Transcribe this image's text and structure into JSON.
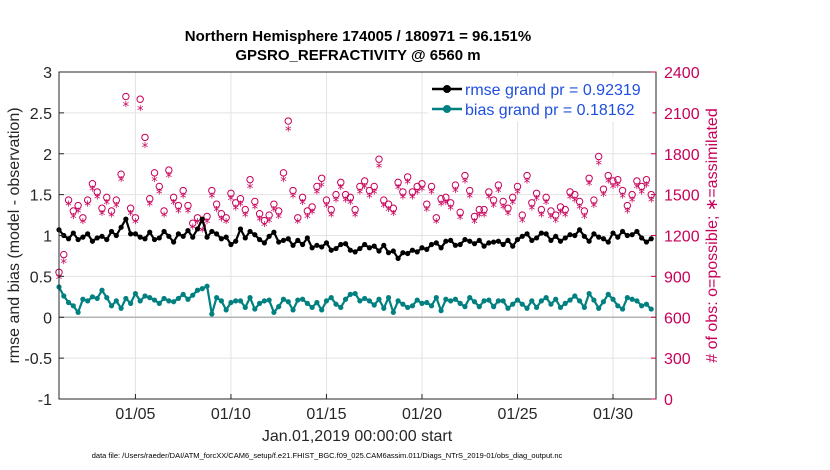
{
  "chart_data": {
    "type": "line",
    "title_line1": "Northern Hemisphere 174005 / 180971 = 96.151%",
    "title_line2": "GPSRO_REFRACTIVITY @ 6560 m",
    "ylabel_left": "rmse and bias (model - observation)",
    "ylabel_right": "# of obs: o=possible; ∗=assimilated",
    "xlabel": "Jan.01,2019 00:00:00 start",
    "footnote": "data file: /Users/raeder/DAI/ATM_forcXX/CAM6_setup/f.e21.FHIST_BGC.f09_025.CAM6assim.011/Diags_NTrS_2019-01/obs_diag_output.nc",
    "xlim": [
      1,
      32.25
    ],
    "ylim_left": [
      -1,
      3
    ],
    "ylim_right": [
      0,
      2400
    ],
    "yticks_left": [
      "-1",
      "-0.5",
      "0",
      "0.5",
      "1",
      "1.5",
      "2",
      "2.5",
      "3"
    ],
    "yticks_left_values": [
      -1,
      -0.5,
      0,
      0.5,
      1,
      1.5,
      2,
      2.5,
      3
    ],
    "yticks_right": [
      "0",
      "300",
      "600",
      "900",
      "1200",
      "1500",
      "1800",
      "2100",
      "2400"
    ],
    "yticks_right_values": [
      0,
      300,
      600,
      900,
      1200,
      1500,
      1800,
      2100,
      2400
    ],
    "xticks": [
      "01/05",
      "01/10",
      "01/15",
      "01/20",
      "01/25",
      "01/30"
    ],
    "xticks_values": [
      5,
      10,
      15,
      20,
      25,
      30
    ],
    "grid": true,
    "legend_position": "top-right",
    "colors": {
      "rmse": "#000000",
      "bias": "#008080",
      "counts": "#c8005a",
      "zero_line": "#b4b4b4",
      "legend_text": "#1f4fe0"
    },
    "series": [
      {
        "name": "rmse",
        "legend": "rmse grand pr = 0.92319",
        "color": "#000000",
        "marker": "dot",
        "x": [
          1.0,
          1.25,
          1.5,
          1.75,
          2.0,
          2.25,
          2.5,
          2.75,
          3.0,
          3.25,
          3.5,
          3.75,
          4.0,
          4.25,
          4.5,
          4.75,
          5.0,
          5.25,
          5.5,
          5.75,
          6.0,
          6.25,
          6.5,
          6.75,
          7.0,
          7.25,
          7.5,
          7.75,
          8.0,
          8.25,
          8.5,
          8.75,
          9.0,
          9.25,
          9.5,
          9.75,
          10.0,
          10.25,
          10.5,
          10.75,
          11.0,
          11.25,
          11.5,
          11.75,
          12.0,
          12.25,
          12.5,
          12.75,
          13.0,
          13.25,
          13.5,
          13.75,
          14.0,
          14.25,
          14.5,
          14.75,
          15.0,
          15.25,
          15.5,
          15.75,
          16.0,
          16.25,
          16.5,
          16.75,
          17.0,
          17.25,
          17.5,
          17.75,
          18.0,
          18.25,
          18.5,
          18.75,
          19.0,
          19.25,
          19.5,
          19.75,
          20.0,
          20.25,
          20.5,
          20.75,
          21.0,
          21.25,
          21.5,
          21.75,
          22.0,
          22.25,
          22.5,
          22.75,
          23.0,
          23.25,
          23.5,
          23.75,
          24.0,
          24.25,
          24.5,
          24.75,
          25.0,
          25.25,
          25.5,
          25.75,
          26.0,
          26.25,
          26.5,
          26.75,
          27.0,
          27.25,
          27.5,
          27.75,
          28.0,
          28.25,
          28.5,
          28.75,
          29.0,
          29.25,
          29.5,
          29.75,
          30.0,
          30.25,
          30.5,
          30.75,
          31.0,
          31.25,
          31.5,
          31.75,
          32.0
        ],
        "values": [
          1.07,
          1.0,
          0.96,
          1.03,
          0.95,
          0.98,
          1.02,
          0.93,
          0.97,
          0.99,
          0.95,
          1.05,
          1.0,
          1.1,
          1.2,
          1.02,
          1.02,
          0.98,
          0.96,
          1.04,
          0.95,
          0.97,
          1.05,
          0.99,
          0.92,
          1.02,
          0.99,
          1.06,
          0.98,
          1.08,
          1.2,
          0.98,
          1.05,
          1.02,
          0.96,
          0.98,
          0.89,
          0.93,
          1.08,
          0.97,
          1.05,
          1.01,
          0.95,
          0.91,
          0.99,
          1.04,
          0.92,
          0.94,
          0.96,
          0.88,
          0.94,
          0.89,
          0.97,
          0.85,
          0.88,
          0.86,
          0.91,
          0.82,
          0.84,
          0.89,
          0.9,
          0.82,
          0.8,
          0.84,
          0.89,
          0.85,
          0.87,
          0.81,
          0.88,
          0.79,
          0.81,
          0.72,
          0.79,
          0.78,
          0.82,
          0.8,
          0.85,
          0.83,
          0.89,
          0.91,
          0.85,
          0.93,
          0.94,
          0.88,
          0.89,
          0.95,
          0.93,
          0.9,
          0.94,
          0.87,
          0.91,
          0.92,
          0.93,
          0.89,
          0.94,
          0.87,
          0.95,
          0.99,
          1.02,
          0.94,
          0.97,
          1.03,
          1.02,
          0.94,
          0.99,
          0.93,
          0.97,
          1.01,
          1.0,
          1.07,
          0.99,
          0.93,
          1.02,
          0.98,
          0.96,
          0.92,
          1.03,
          0.98,
          1.05,
          1.0,
          1.01,
          1.05,
          0.97,
          0.92,
          0.96
        ]
      },
      {
        "name": "bias",
        "legend": "bias grand pr = 0.18162",
        "color": "#008080",
        "marker": "dot",
        "x": [
          1.0,
          1.25,
          1.5,
          1.75,
          2.0,
          2.25,
          2.5,
          2.75,
          3.0,
          3.25,
          3.5,
          3.75,
          4.0,
          4.25,
          4.5,
          4.75,
          5.0,
          5.25,
          5.5,
          5.75,
          6.0,
          6.25,
          6.5,
          6.75,
          7.0,
          7.25,
          7.5,
          7.75,
          8.0,
          8.25,
          8.5,
          8.75,
          9.0,
          9.25,
          9.5,
          9.75,
          10.0,
          10.25,
          10.5,
          10.75,
          11.0,
          11.25,
          11.5,
          11.75,
          12.0,
          12.25,
          12.5,
          12.75,
          13.0,
          13.25,
          13.5,
          13.75,
          14.0,
          14.25,
          14.5,
          14.75,
          15.0,
          15.25,
          15.5,
          15.75,
          16.0,
          16.25,
          16.5,
          16.75,
          17.0,
          17.25,
          17.5,
          17.75,
          18.0,
          18.25,
          18.5,
          18.75,
          19.0,
          19.25,
          19.5,
          19.75,
          20.0,
          20.25,
          20.5,
          20.75,
          21.0,
          21.25,
          21.5,
          21.75,
          22.0,
          22.25,
          22.5,
          22.75,
          23.0,
          23.25,
          23.5,
          23.75,
          24.0,
          24.25,
          24.5,
          24.75,
          25.0,
          25.25,
          25.5,
          25.75,
          26.0,
          26.25,
          26.5,
          26.75,
          27.0,
          27.25,
          27.5,
          27.75,
          28.0,
          28.25,
          28.5,
          28.75,
          29.0,
          29.25,
          29.5,
          29.75,
          30.0,
          30.25,
          30.5,
          30.75,
          31.0,
          31.25,
          31.5,
          31.75,
          32.0
        ],
        "values": [
          0.37,
          0.26,
          0.18,
          0.14,
          0.06,
          0.22,
          0.2,
          0.25,
          0.23,
          0.33,
          0.24,
          0.14,
          0.2,
          0.11,
          0.23,
          0.17,
          0.29,
          0.2,
          0.26,
          0.24,
          0.21,
          0.17,
          0.23,
          0.2,
          0.19,
          0.23,
          0.28,
          0.22,
          0.27,
          0.33,
          0.35,
          0.38,
          0.04,
          0.24,
          0.2,
          0.09,
          0.18,
          0.2,
          0.2,
          0.12,
          0.24,
          0.1,
          0.17,
          0.2,
          0.21,
          0.06,
          0.13,
          0.22,
          0.19,
          0.09,
          0.21,
          0.22,
          0.17,
          0.12,
          0.18,
          0.09,
          0.2,
          0.24,
          0.16,
          0.12,
          0.22,
          0.28,
          0.29,
          0.2,
          0.23,
          0.2,
          0.15,
          0.22,
          0.11,
          0.24,
          0.06,
          0.2,
          0.16,
          0.12,
          0.14,
          0.21,
          0.17,
          0.18,
          0.14,
          0.24,
          0.08,
          0.22,
          0.2,
          0.22,
          0.17,
          0.13,
          0.24,
          0.19,
          0.13,
          0.2,
          0.21,
          0.13,
          0.2,
          0.2,
          0.11,
          0.16,
          0.21,
          0.16,
          0.11,
          0.2,
          0.12,
          0.2,
          0.24,
          0.16,
          0.22,
          0.12,
          0.17,
          0.21,
          0.26,
          0.2,
          0.12,
          0.29,
          0.21,
          0.11,
          0.19,
          0.28,
          0.22,
          0.14,
          0.1,
          0.24,
          0.22,
          0.2,
          0.14,
          0.16,
          0.1
        ]
      },
      {
        "name": "obs_possible",
        "marker": "circle",
        "axis": "right",
        "color": "#c8005a",
        "x": [
          1.0,
          1.25,
          1.5,
          1.75,
          2.0,
          2.25,
          2.5,
          2.75,
          3.0,
          3.25,
          3.5,
          3.75,
          4.0,
          4.25,
          4.5,
          4.75,
          5.0,
          5.25,
          5.5,
          5.75,
          6.0,
          6.25,
          6.5,
          6.75,
          7.0,
          7.25,
          7.5,
          7.75,
          8.0,
          8.25,
          8.5,
          8.75,
          9.0,
          9.25,
          9.5,
          9.75,
          10.0,
          10.25,
          10.5,
          10.75,
          11.0,
          11.25,
          11.5,
          11.75,
          12.0,
          12.25,
          12.5,
          12.75,
          13.0,
          13.25,
          13.5,
          13.75,
          14.0,
          14.25,
          14.5,
          14.75,
          15.0,
          15.25,
          15.5,
          15.75,
          16.0,
          16.25,
          16.5,
          16.75,
          17.0,
          17.25,
          17.5,
          17.75,
          18.0,
          18.25,
          18.5,
          18.75,
          19.0,
          19.25,
          19.5,
          19.75,
          20.0,
          20.25,
          20.5,
          20.75,
          21.0,
          21.25,
          21.5,
          21.75,
          22.0,
          22.25,
          22.5,
          22.75,
          23.0,
          23.25,
          23.5,
          23.75,
          24.0,
          24.25,
          24.5,
          24.75,
          25.0,
          25.25,
          25.5,
          25.75,
          26.0,
          26.25,
          26.5,
          26.75,
          27.0,
          27.25,
          27.5,
          27.75,
          28.0,
          28.25,
          28.5,
          28.75,
          29.0,
          29.25,
          29.5,
          29.75,
          30.0,
          30.25,
          30.5,
          30.75,
          31.0,
          31.25,
          31.5,
          31.75,
          32.0
        ],
        "values": [
          930,
          1060,
          1460,
          1380,
          1420,
          1330,
          1460,
          1580,
          1520,
          1400,
          1480,
          1380,
          1460,
          1650,
          2220,
          1400,
          1330,
          2200,
          1920,
          1470,
          1660,
          1560,
          1380,
          1680,
          1480,
          1420,
          1530,
          1420,
          1290,
          1330,
          1270,
          1340,
          1530,
          1430,
          1360,
          1330,
          1510,
          1440,
          1470,
          1390,
          1610,
          1450,
          1360,
          1310,
          1350,
          1430,
          1380,
          1660,
          2040,
          1530,
          1330,
          1480,
          1380,
          1410,
          1560,
          1620,
          1460,
          1390,
          1500,
          1590,
          1500,
          1480,
          1390,
          1560,
          1600,
          1530,
          1560,
          1760,
          1460,
          1430,
          1400,
          1590,
          1520,
          1630,
          1520,
          1560,
          1580,
          1430,
          1560,
          1330,
          1470,
          1480,
          1440,
          1570,
          1370,
          1640,
          1530,
          1340,
          1390,
          1390,
          1520,
          1460,
          1570,
          1450,
          1400,
          1480,
          1560,
          1350,
          1640,
          1440,
          1510,
          1390,
          1480,
          1380,
          1350,
          1410,
          1390,
          1520,
          1500,
          1450,
          1380,
          1620,
          1460,
          1780,
          1540,
          1640,
          1600,
          1610,
          1530,
          1420,
          1500,
          1600,
          1560,
          1610,
          1500
        ]
      },
      {
        "name": "obs_assimilated",
        "marker": "asterisk",
        "axis": "right",
        "color": "#c8005a",
        "x": [
          1.0,
          1.25,
          1.5,
          1.75,
          2.0,
          2.25,
          2.5,
          2.75,
          3.0,
          3.25,
          3.5,
          3.75,
          4.0,
          4.25,
          4.5,
          4.75,
          5.0,
          5.25,
          5.5,
          5.75,
          6.0,
          6.25,
          6.5,
          6.75,
          7.0,
          7.25,
          7.5,
          7.75,
          8.0,
          8.25,
          8.5,
          8.75,
          9.0,
          9.25,
          9.5,
          9.75,
          10.0,
          10.25,
          10.5,
          10.75,
          11.0,
          11.25,
          11.5,
          11.75,
          12.0,
          12.25,
          12.5,
          12.75,
          13.0,
          13.25,
          13.5,
          13.75,
          14.0,
          14.25,
          14.5,
          14.75,
          15.0,
          15.25,
          15.5,
          15.75,
          16.0,
          16.25,
          16.5,
          16.75,
          17.0,
          17.25,
          17.5,
          17.75,
          18.0,
          18.25,
          18.5,
          18.75,
          19.0,
          19.25,
          19.5,
          19.75,
          20.0,
          20.25,
          20.5,
          20.75,
          21.0,
          21.25,
          21.5,
          21.75,
          22.0,
          22.25,
          22.5,
          22.75,
          23.0,
          23.25,
          23.5,
          23.75,
          24.0,
          24.25,
          24.5,
          24.75,
          25.0,
          25.25,
          25.5,
          25.75,
          26.0,
          26.25,
          26.5,
          26.75,
          27.0,
          27.25,
          27.5,
          27.75,
          28.0,
          28.25,
          28.5,
          28.75,
          29.0,
          29.25,
          29.5,
          29.75,
          30.0,
          30.25,
          30.5,
          30.75,
          31.0,
          31.25,
          31.5,
          31.75,
          32.0
        ],
        "values": [
          880,
          1000,
          1420,
          1330,
          1370,
          1290,
          1420,
          1530,
          1470,
          1350,
          1430,
          1340,
          1410,
          1600,
          2150,
          1350,
          1290,
          2120,
          1850,
          1420,
          1600,
          1510,
          1340,
          1630,
          1430,
          1370,
          1480,
          1370,
          1250,
          1290,
          1230,
          1290,
          1480,
          1380,
          1310,
          1290,
          1460,
          1390,
          1420,
          1340,
          1550,
          1400,
          1310,
          1270,
          1300,
          1380,
          1330,
          1600,
          1970,
          1480,
          1290,
          1430,
          1330,
          1360,
          1510,
          1560,
          1410,
          1340,
          1450,
          1540,
          1450,
          1430,
          1340,
          1510,
          1550,
          1480,
          1510,
          1700,
          1410,
          1380,
          1350,
          1540,
          1470,
          1580,
          1470,
          1510,
          1530,
          1380,
          1510,
          1290,
          1420,
          1430,
          1390,
          1520,
          1320,
          1590,
          1480,
          1290,
          1340,
          1340,
          1470,
          1410,
          1520,
          1400,
          1350,
          1430,
          1510,
          1300,
          1590,
          1390,
          1460,
          1340,
          1430,
          1330,
          1300,
          1360,
          1340,
          1470,
          1450,
          1400,
          1330,
          1570,
          1410,
          1720,
          1490,
          1590,
          1550,
          1560,
          1480,
          1370,
          1450,
          1550,
          1510,
          1560,
          1450
        ]
      }
    ]
  }
}
